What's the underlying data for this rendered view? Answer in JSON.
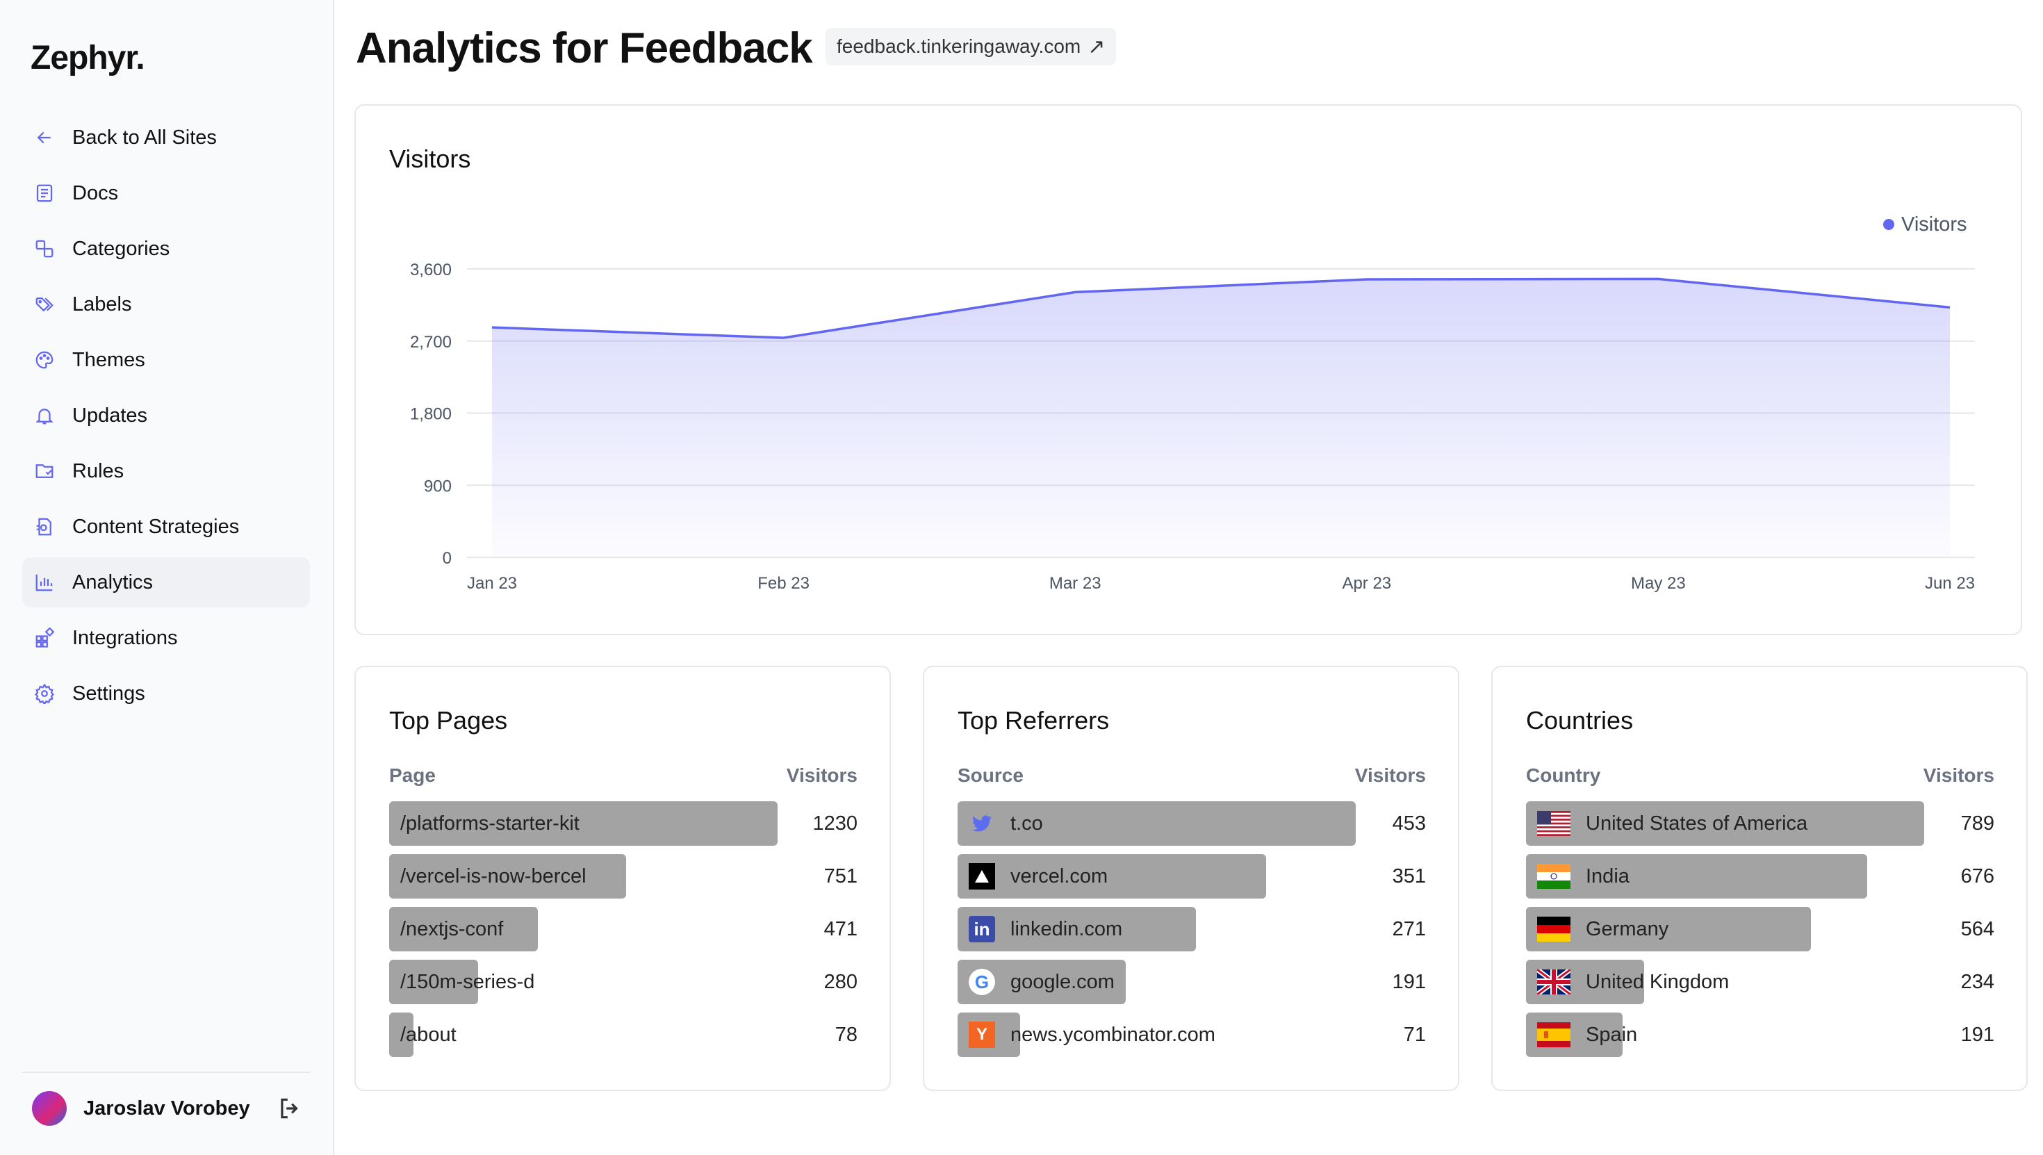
{
  "sidebar": {
    "logo": "Zephyr.",
    "items": [
      {
        "label": "Back to All Sites",
        "icon": "arrow-left-icon"
      },
      {
        "label": "Docs",
        "icon": "docs-icon"
      },
      {
        "label": "Categories",
        "icon": "categories-icon"
      },
      {
        "label": "Labels",
        "icon": "tags-icon"
      },
      {
        "label": "Themes",
        "icon": "palette-icon"
      },
      {
        "label": "Updates",
        "icon": "bell-icon"
      },
      {
        "label": "Rules",
        "icon": "rules-icon"
      },
      {
        "label": "Content Strategies",
        "icon": "strategy-icon"
      },
      {
        "label": "Analytics",
        "icon": "bar-chart-icon",
        "active": true
      },
      {
        "label": "Integrations",
        "icon": "integrations-icon"
      },
      {
        "label": "Settings",
        "icon": "gear-icon"
      }
    ],
    "user": {
      "name": "Jaroslav Vorobey"
    }
  },
  "header": {
    "title": "Analytics for Feedback",
    "site_link": "feedback.tinkeringaway.com",
    "site_link_icon": "↗"
  },
  "chart_card": {
    "title": "Visitors"
  },
  "chart_data": {
    "type": "area",
    "title": "Visitors",
    "categories": [
      "Jan 23",
      "Feb 23",
      "Mar 23",
      "Apr 23",
      "May 23",
      "Jun 23"
    ],
    "series": [
      {
        "name": "Visitors",
        "values": [
          2870,
          2740,
          3310,
          3470,
          3475,
          3120
        ],
        "color": "#6366f1"
      }
    ],
    "yticks": [
      0,
      900,
      1800,
      2700,
      3600
    ],
    "ytick_labels": [
      "0",
      "900",
      "1,800",
      "2,700",
      "3,600"
    ],
    "ylim": [
      0,
      3600
    ],
    "legend": "top-right",
    "grid": true
  },
  "top_pages": {
    "title": "Top Pages",
    "col1": "Page",
    "col2": "Visitors",
    "rows": [
      {
        "label": "/platforms-starter-kit",
        "value": "1230",
        "fraction": 1.0
      },
      {
        "label": "/vercel-is-now-bercel",
        "value": "751",
        "fraction": 0.61
      },
      {
        "label": "/nextjs-conf",
        "value": "471",
        "fraction": 0.383
      },
      {
        "label": "/150m-series-d",
        "value": "280",
        "fraction": 0.228
      },
      {
        "label": "/about",
        "value": "78",
        "fraction": 0.063
      }
    ]
  },
  "top_referrers": {
    "title": "Top Referrers",
    "col1": "Source",
    "col2": "Visitors",
    "rows": [
      {
        "label": "t.co",
        "value": "453",
        "fraction": 1.0,
        "icon": "twitter-icon"
      },
      {
        "label": "vercel.com",
        "value": "351",
        "fraction": 0.775,
        "icon": "vercel-icon"
      },
      {
        "label": "linkedin.com",
        "value": "271",
        "fraction": 0.598,
        "icon": "linkedin-icon"
      },
      {
        "label": "google.com",
        "value": "191",
        "fraction": 0.422,
        "icon": "google-icon"
      },
      {
        "label": "news.ycombinator.com",
        "value": "71",
        "fraction": 0.157,
        "icon": "ycombinator-icon"
      }
    ]
  },
  "countries": {
    "title": "Countries",
    "col1": "Country",
    "col2": "Visitors",
    "rows": [
      {
        "label": "United States of America",
        "value": "789",
        "fraction": 1.0,
        "icon": "flag-us-icon"
      },
      {
        "label": "India",
        "value": "676",
        "fraction": 0.857,
        "icon": "flag-in-icon"
      },
      {
        "label": "Germany",
        "value": "564",
        "fraction": 0.715,
        "icon": "flag-de-icon"
      },
      {
        "label": "United Kingdom",
        "value": "234",
        "fraction": 0.297,
        "icon": "flag-gb-icon"
      },
      {
        "label": "Spain",
        "value": "191",
        "fraction": 0.242,
        "icon": "flag-es-icon"
      }
    ]
  },
  "colors": {
    "accent": "#6366f1",
    "bar": "#a3a3a3",
    "sidebar_bg": "#f9fafb"
  }
}
